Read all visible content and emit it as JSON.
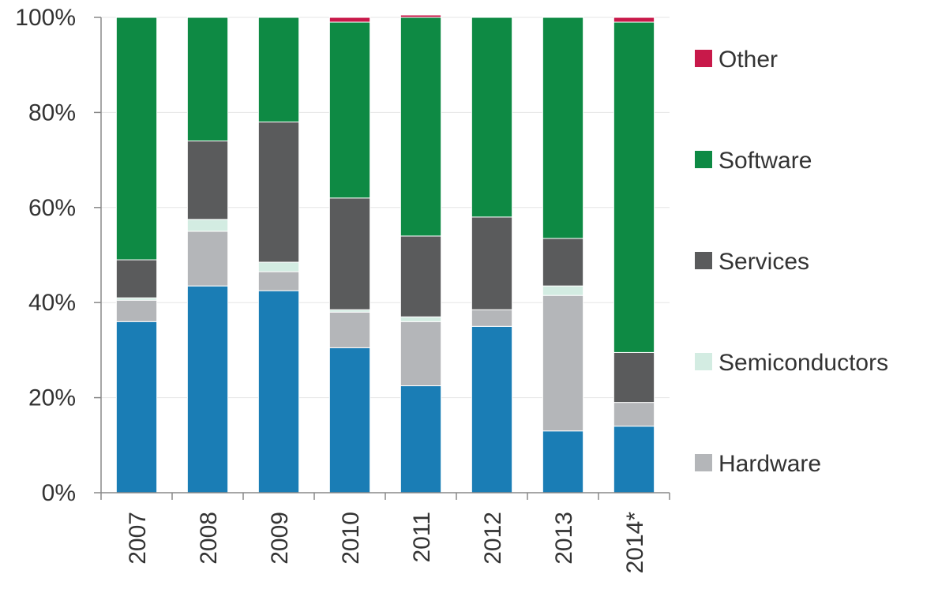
{
  "chart_data": {
    "type": "bar",
    "stacked": true,
    "normalized": true,
    "categories": [
      "2007",
      "2008",
      "2009",
      "2010",
      "2011",
      "2012",
      "2013",
      "2014*"
    ],
    "ylim": [
      0,
      100
    ],
    "yticks": [
      "0%",
      "20%",
      "40%",
      "60%",
      "80%",
      "100%"
    ],
    "grid": true,
    "legend_position": "right",
    "series": [
      {
        "name": "",
        "color": "#1a7db5",
        "values": [
          36,
          43.5,
          42.5,
          30.5,
          22.5,
          35,
          13,
          14
        ]
      },
      {
        "name": "Hardware",
        "color": "#b4b6b9",
        "values": [
          4.5,
          11.5,
          4,
          7.5,
          13.5,
          3.5,
          28.5,
          5
        ]
      },
      {
        "name": "Semiconductors",
        "color": "#d3ece2",
        "values": [
          0.5,
          2.5,
          2,
          0.5,
          1,
          0,
          2,
          0
        ]
      },
      {
        "name": "Services",
        "color": "#5a5b5c",
        "values": [
          8,
          16.5,
          29.5,
          23.5,
          17,
          19.5,
          10,
          10.5
        ]
      },
      {
        "name": "Software",
        "color": "#0e8a44",
        "values": [
          51,
          26,
          22,
          37,
          46,
          42,
          46.5,
          69.5
        ]
      },
      {
        "name": "Other",
        "color": "#c8194a",
        "values": [
          0,
          0,
          0,
          1,
          0.5,
          0,
          0,
          1
        ]
      }
    ]
  },
  "legend": {
    "items": [
      {
        "label": "Other",
        "color": "#c8194a"
      },
      {
        "label": "Software",
        "color": "#0e8a44"
      },
      {
        "label": "Services",
        "color": "#5a5b5c"
      },
      {
        "label": "Semiconductors",
        "color": "#d3ece2"
      },
      {
        "label": "Hardware",
        "color": "#b4b6b9"
      }
    ]
  }
}
